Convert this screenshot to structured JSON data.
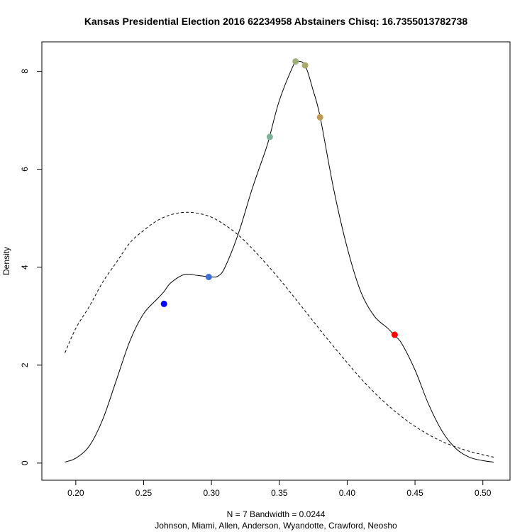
{
  "chart_data": {
    "type": "line",
    "title": "Kansas Presidential Election 2016 62234958 Abstainers Chisq: 16.7355013782738",
    "ylabel": "Density",
    "xlabel_line1": "N = 7   Bandwidth = 0.0244",
    "xlabel_line2": "Johnson, Miami, Allen, Anderson, Wyandotte, Crawford, Neosho",
    "xlim": [
      0.175,
      0.52
    ],
    "ylim": [
      -0.35,
      8.6
    ],
    "x_ticks": [
      0.2,
      0.25,
      0.3,
      0.35,
      0.4,
      0.45,
      0.5
    ],
    "x_tick_labels": [
      "0.20",
      "0.25",
      "0.30",
      "0.35",
      "0.40",
      "0.45",
      "0.50"
    ],
    "y_ticks": [
      0,
      2,
      4,
      6,
      8
    ],
    "y_tick_labels": [
      "0",
      "2",
      "4",
      "6",
      "8"
    ],
    "grid": false,
    "series": [
      {
        "style": "solid",
        "color": "#000000",
        "x": [
          0.192,
          0.2,
          0.21,
          0.22,
          0.23,
          0.24,
          0.25,
          0.26,
          0.265,
          0.27,
          0.28,
          0.29,
          0.3,
          0.305,
          0.31,
          0.32,
          0.33,
          0.34,
          0.343,
          0.35,
          0.36,
          0.363,
          0.369,
          0.375,
          0.38,
          0.39,
          0.4,
          0.41,
          0.42,
          0.43,
          0.435,
          0.44,
          0.45,
          0.46,
          0.47,
          0.48,
          0.49,
          0.5,
          0.508
        ],
        "y": [
          0.02,
          0.1,
          0.35,
          0.9,
          1.7,
          2.5,
          3.05,
          3.35,
          3.5,
          3.68,
          3.85,
          3.83,
          3.8,
          3.82,
          4.0,
          4.7,
          5.6,
          6.4,
          6.68,
          7.4,
          8.1,
          8.2,
          8.12,
          7.6,
          7.08,
          5.6,
          4.4,
          3.5,
          3.0,
          2.75,
          2.6,
          2.45,
          1.9,
          1.2,
          0.65,
          0.3,
          0.12,
          0.05,
          0.02
        ]
      },
      {
        "style": "dashed",
        "color": "#000000",
        "x": [
          0.192,
          0.2,
          0.21,
          0.22,
          0.23,
          0.24,
          0.25,
          0.26,
          0.27,
          0.28,
          0.29,
          0.3,
          0.31,
          0.32,
          0.33,
          0.34,
          0.35,
          0.36,
          0.37,
          0.38,
          0.39,
          0.4,
          0.41,
          0.42,
          0.43,
          0.44,
          0.45,
          0.46,
          0.47,
          0.48,
          0.49,
          0.5,
          0.508
        ],
        "y": [
          2.25,
          2.75,
          3.2,
          3.7,
          4.1,
          4.5,
          4.75,
          4.95,
          5.07,
          5.12,
          5.1,
          5.02,
          4.86,
          4.65,
          4.38,
          4.08,
          3.76,
          3.42,
          3.07,
          2.72,
          2.38,
          2.05,
          1.73,
          1.44,
          1.18,
          0.95,
          0.75,
          0.58,
          0.44,
          0.33,
          0.24,
          0.17,
          0.12
        ]
      }
    ],
    "points": [
      {
        "x": 0.265,
        "y": 3.25,
        "color": "#0000ff"
      },
      {
        "x": 0.298,
        "y": 3.8,
        "color": "#3f6fd4"
      },
      {
        "x": 0.343,
        "y": 6.66,
        "color": "#7fb09a"
      },
      {
        "x": 0.362,
        "y": 8.2,
        "color": "#9caf78"
      },
      {
        "x": 0.369,
        "y": 8.12,
        "color": "#a9aa68"
      },
      {
        "x": 0.38,
        "y": 7.06,
        "color": "#c09a50"
      },
      {
        "x": 0.435,
        "y": 2.62,
        "color": "#ff0000"
      }
    ]
  }
}
